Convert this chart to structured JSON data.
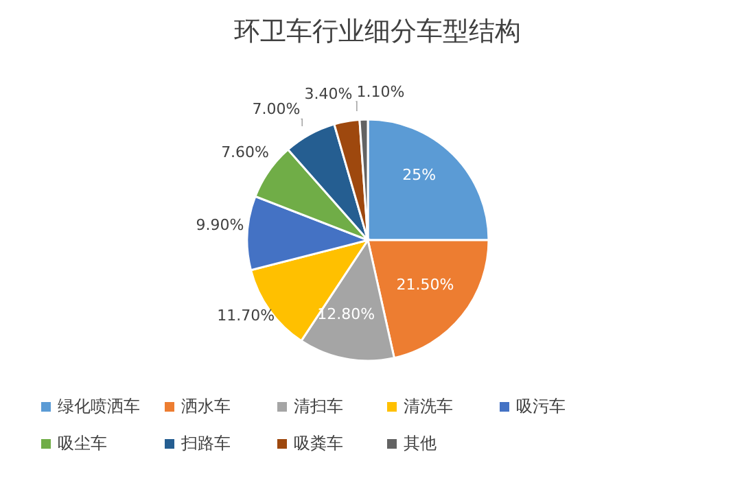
{
  "chart_data": {
    "type": "pie",
    "title": "环卫车行业细分车型结构",
    "categories": [
      "绿化喷洒车",
      "洒水车",
      "清扫车",
      "清洗车",
      "吸污车",
      "吸尘车",
      "扫路车",
      "吸粪车",
      "其他"
    ],
    "values": [
      25,
      21.5,
      12.8,
      11.7,
      9.9,
      7.6,
      7.0,
      3.4,
      1.1
    ],
    "value_labels": [
      "25%",
      "21.50%",
      "12.80%",
      "11.70%",
      "9.90%",
      "7.60%",
      "7.00%",
      "3.40%",
      "1.10%"
    ],
    "colors": [
      "#5b9bd5",
      "#ed7d31",
      "#a5a5a5",
      "#ffc000",
      "#4472c4",
      "#70ad47",
      "#255e91",
      "#9e480e",
      "#636363"
    ],
    "legend": "bottom"
  }
}
